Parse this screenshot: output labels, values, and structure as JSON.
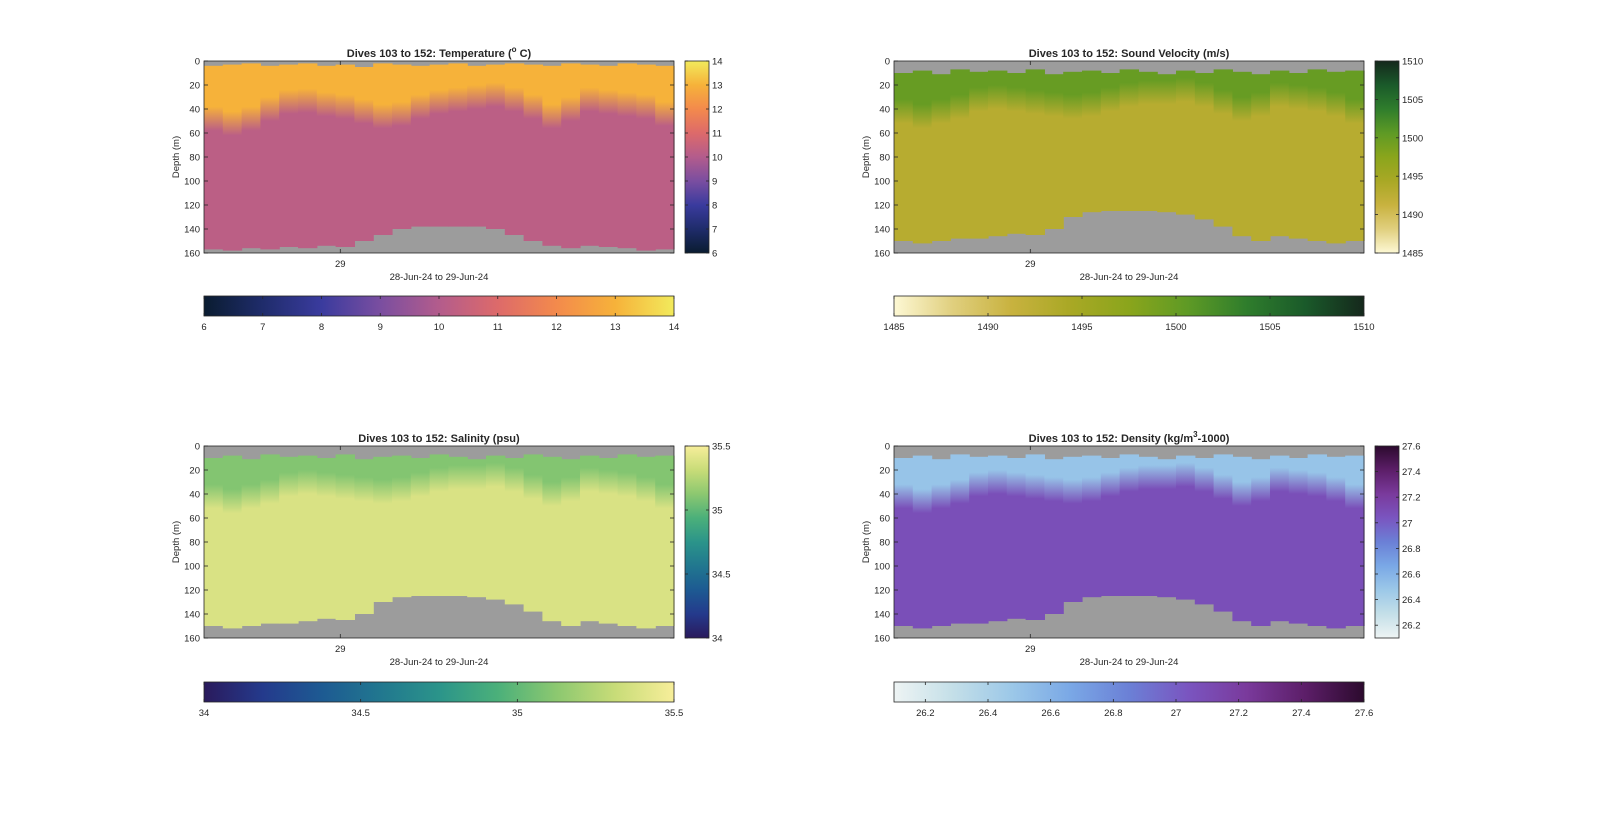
{
  "chart_data": [
    {
      "type": "heatmap",
      "title_main": "Dives 103 to 152: Temperature (",
      "title_sup": "o",
      "title_tail": " C)",
      "xlabel": "28-Jun-24 to 29-Jun-24",
      "ylabel": "Depth (m)",
      "xtick_labels": [
        "29"
      ],
      "ylim": [
        0,
        160
      ],
      "yticks": [
        0,
        20,
        40,
        60,
        80,
        100,
        120,
        140,
        160
      ],
      "clim": [
        6,
        14
      ],
      "colorbar_ticks": [
        "6",
        "7",
        "8",
        "9",
        "10",
        "11",
        "12",
        "13",
        "14"
      ],
      "bottom_colorbar_ticks": [
        "6",
        "7",
        "8",
        "9",
        "10",
        "11",
        "12",
        "13",
        "14"
      ],
      "colormap": [
        "#0a1c30",
        "#1f2c6b",
        "#3a3b9e",
        "#7a4ea0",
        "#b35c8c",
        "#dd6a6a",
        "#f38a4c",
        "#f6b23a",
        "#f2ea5c"
      ],
      "mask_color": "#9c9c9c",
      "surface_value": 13.0,
      "deep_value": 10.2,
      "x": [
        0,
        2,
        4,
        6,
        8,
        10,
        12,
        14,
        16,
        18,
        20,
        22,
        24,
        26,
        28,
        30,
        32,
        34,
        36,
        38,
        40,
        42,
        44,
        46,
        48
      ],
      "mixed_layer_depth_m": [
        50,
        54,
        50,
        42,
        36,
        35,
        38,
        40,
        44,
        48,
        46,
        40,
        36,
        34,
        32,
        30,
        34,
        40,
        48,
        42,
        34,
        36,
        38,
        40,
        46
      ],
      "top_gap_m": [
        4,
        3,
        2,
        4,
        3,
        2,
        4,
        3,
        5,
        2,
        3,
        4,
        3,
        2,
        4,
        3,
        2,
        3,
        4,
        2,
        3,
        4,
        2,
        3,
        4
      ],
      "max_depth_m": [
        157,
        158,
        156,
        157,
        155,
        156,
        154,
        155,
        150,
        145,
        140,
        138,
        138,
        138,
        138,
        140,
        145,
        150,
        154,
        156,
        154,
        155,
        156,
        158,
        157
      ]
    },
    {
      "type": "heatmap",
      "title_main": "Dives 103 to 152: Sound Velocity (m/s)",
      "title_sup": "",
      "title_tail": "",
      "xlabel": "28-Jun-24 to 29-Jun-24",
      "ylabel": "Depth (m)",
      "xtick_labels": [
        "29"
      ],
      "ylim": [
        0,
        160
      ],
      "yticks": [
        0,
        20,
        40,
        60,
        80,
        100,
        120,
        140,
        160
      ],
      "clim": [
        1485,
        1510
      ],
      "colorbar_ticks": [
        "1485",
        "1490",
        "1495",
        "1500",
        "1505",
        "1510"
      ],
      "bottom_colorbar_ticks": [
        "1485",
        "1490",
        "1495",
        "1500",
        "1505",
        "1510"
      ],
      "colormap": [
        "#fdf8d4",
        "#e0cf7e",
        "#c8b23f",
        "#a9a825",
        "#8aa51c",
        "#5e9a25",
        "#2f7d2c",
        "#1a5a2a",
        "#15281c"
      ],
      "mask_color": "#9c9c9c",
      "surface_value": 1500.0,
      "deep_value": 1493.0,
      "x": [
        0,
        2,
        4,
        6,
        8,
        10,
        12,
        14,
        16,
        18,
        20,
        22,
        24,
        26,
        28,
        30,
        32,
        34,
        36,
        38,
        40,
        42,
        44,
        46,
        48
      ],
      "mixed_layer_depth_m": [
        44,
        48,
        44,
        40,
        34,
        32,
        34,
        36,
        38,
        40,
        38,
        34,
        30,
        28,
        28,
        26,
        30,
        36,
        42,
        38,
        30,
        32,
        34,
        38,
        44
      ],
      "top_gap_m": [
        10,
        8,
        11,
        7,
        9,
        8,
        10,
        7,
        11,
        9,
        8,
        10,
        7,
        9,
        11,
        8,
        10,
        7,
        9,
        11,
        8,
        10,
        7,
        9,
        8
      ],
      "max_depth_m": [
        150,
        152,
        150,
        148,
        148,
        146,
        144,
        145,
        140,
        130,
        126,
        125,
        125,
        125,
        126,
        128,
        132,
        138,
        146,
        150,
        146,
        148,
        150,
        152,
        150
      ]
    },
    {
      "type": "heatmap",
      "title_main": "Dives 103 to 152: Salinity (psu)",
      "title_sup": "",
      "title_tail": "",
      "xlabel": "28-Jun-24 to 29-Jun-24",
      "ylabel": "Depth (m)",
      "xtick_labels": [
        "29"
      ],
      "ylim": [
        0,
        160
      ],
      "yticks": [
        0,
        20,
        40,
        60,
        80,
        100,
        120,
        140,
        160
      ],
      "clim": [
        34,
        35.5
      ],
      "colorbar_ticks": [
        "34",
        "34.5",
        "35",
        "35.5"
      ],
      "bottom_colorbar_ticks": [
        "34",
        "34.5",
        "35",
        "35.5"
      ],
      "colormap": [
        "#2a1a5c",
        "#243a8c",
        "#1d5a92",
        "#21778f",
        "#2b948a",
        "#4bb07a",
        "#8cc870",
        "#c8dc78",
        "#f7ee9a"
      ],
      "mask_color": "#9c9c9c",
      "surface_value": 35.1,
      "deep_value": 35.38,
      "x": [
        0,
        2,
        4,
        6,
        8,
        10,
        12,
        14,
        16,
        18,
        20,
        22,
        24,
        26,
        28,
        30,
        32,
        34,
        36,
        38,
        40,
        42,
        44,
        46,
        48
      ],
      "mixed_layer_depth_m": [
        44,
        48,
        44,
        40,
        34,
        32,
        34,
        36,
        38,
        40,
        38,
        34,
        30,
        28,
        28,
        26,
        30,
        36,
        42,
        38,
        30,
        32,
        34,
        38,
        44
      ],
      "top_gap_m": [
        10,
        8,
        11,
        7,
        9,
        8,
        10,
        7,
        11,
        9,
        8,
        10,
        7,
        9,
        11,
        8,
        10,
        7,
        9,
        11,
        8,
        10,
        7,
        9,
        8
      ],
      "max_depth_m": [
        150,
        152,
        150,
        148,
        148,
        146,
        144,
        145,
        140,
        130,
        126,
        125,
        125,
        125,
        126,
        128,
        132,
        138,
        146,
        150,
        146,
        148,
        150,
        152,
        150
      ]
    },
    {
      "type": "heatmap",
      "title_main": "Dives 103 to 152: Density (kg/m",
      "title_sup": "3",
      "title_tail": "-1000)",
      "xlabel": "28-Jun-24 to 29-Jun-24",
      "ylabel": "Depth (m)",
      "xtick_labels": [
        "29"
      ],
      "ylim": [
        0,
        160
      ],
      "yticks": [
        0,
        20,
        40,
        60,
        80,
        100,
        120,
        140,
        160
      ],
      "clim": [
        26.1,
        27.6
      ],
      "colorbar_ticks": [
        "26.2",
        "26.4",
        "26.6",
        "26.8",
        "27",
        "27.2",
        "27.4",
        "27.6"
      ],
      "bottom_colorbar_ticks": [
        "26.2",
        "26.4",
        "26.6",
        "26.8",
        "27",
        "27.2",
        "27.4",
        "27.6"
      ],
      "colormap": [
        "#eef4f4",
        "#c4dfe8",
        "#9cc8e8",
        "#7aa8e6",
        "#6b80d6",
        "#7a55c0",
        "#7a3a9c",
        "#5c1e68",
        "#2c0a2e"
      ],
      "mask_color": "#9c9c9c",
      "surface_value": 26.5,
      "deep_value": 27.08,
      "x": [
        0,
        2,
        4,
        6,
        8,
        10,
        12,
        14,
        16,
        18,
        20,
        22,
        24,
        26,
        28,
        30,
        32,
        34,
        36,
        38,
        40,
        42,
        44,
        46,
        48
      ],
      "mixed_layer_depth_m": [
        44,
        48,
        44,
        40,
        34,
        32,
        34,
        36,
        38,
        40,
        38,
        34,
        30,
        28,
        28,
        26,
        30,
        36,
        42,
        38,
        30,
        32,
        34,
        38,
        44
      ],
      "top_gap_m": [
        10,
        8,
        11,
        7,
        9,
        8,
        10,
        7,
        11,
        9,
        8,
        10,
        7,
        9,
        11,
        8,
        10,
        7,
        9,
        11,
        8,
        10,
        7,
        9,
        8
      ],
      "max_depth_m": [
        150,
        152,
        150,
        148,
        148,
        146,
        144,
        145,
        140,
        130,
        126,
        125,
        125,
        125,
        126,
        128,
        132,
        138,
        146,
        150,
        146,
        148,
        150,
        152,
        150
      ]
    }
  ]
}
